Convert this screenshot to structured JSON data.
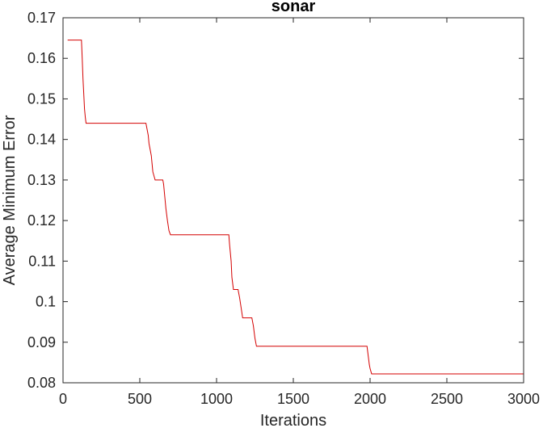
{
  "chart_data": {
    "type": "line",
    "title": "sonar",
    "xlabel": "Iterations",
    "ylabel": "Average Minimum Error",
    "xlim": [
      0,
      3000
    ],
    "ylim": [
      0.08,
      0.17
    ],
    "xticks": [
      0,
      500,
      1000,
      1500,
      2000,
      2500,
      3000
    ],
    "xtick_labels": [
      "0",
      "500",
      "1000",
      "1500",
      "2000",
      "2500",
      "3000"
    ],
    "yticks": [
      0.08,
      0.09,
      0.1,
      0.11,
      0.12,
      0.13,
      0.14,
      0.15,
      0.16,
      0.17
    ],
    "ytick_labels": [
      "0.08",
      "0.09",
      "0.1",
      "0.11",
      "0.12",
      "0.13",
      "0.14",
      "0.15",
      "0.16",
      "0.17"
    ],
    "grid": false,
    "box": true,
    "line_color": "#d40000",
    "series": [
      {
        "x": [
          30,
          110,
          115,
          120,
          125,
          130,
          140,
          145,
          150,
          155,
          540,
          545,
          550,
          555,
          560,
          570,
          575,
          580,
          585,
          600,
          650,
          655,
          660,
          665,
          670,
          680,
          690,
          700,
          1080,
          1085,
          1090,
          1095,
          1100,
          1110,
          1140,
          1150,
          1160,
          1170,
          1230,
          1240,
          1250,
          1260,
          1980,
          1985,
          1990,
          1995,
          2000,
          2010,
          3000
        ],
        "y": [
          0.1645,
          0.1645,
          0.1645,
          0.1645,
          0.16,
          0.155,
          0.1475,
          0.1455,
          0.144,
          0.144,
          0.144,
          0.143,
          0.142,
          0.141,
          0.139,
          0.137,
          0.136,
          0.134,
          0.132,
          0.13,
          0.13,
          0.129,
          0.127,
          0.125,
          0.123,
          0.12,
          0.1175,
          0.1165,
          0.1165,
          0.114,
          0.112,
          0.11,
          0.106,
          0.103,
          0.103,
          0.101,
          0.0985,
          0.096,
          0.096,
          0.094,
          0.091,
          0.089,
          0.089,
          0.0875,
          0.086,
          0.0845,
          0.0835,
          0.0822,
          0.0822
        ]
      }
    ]
  }
}
